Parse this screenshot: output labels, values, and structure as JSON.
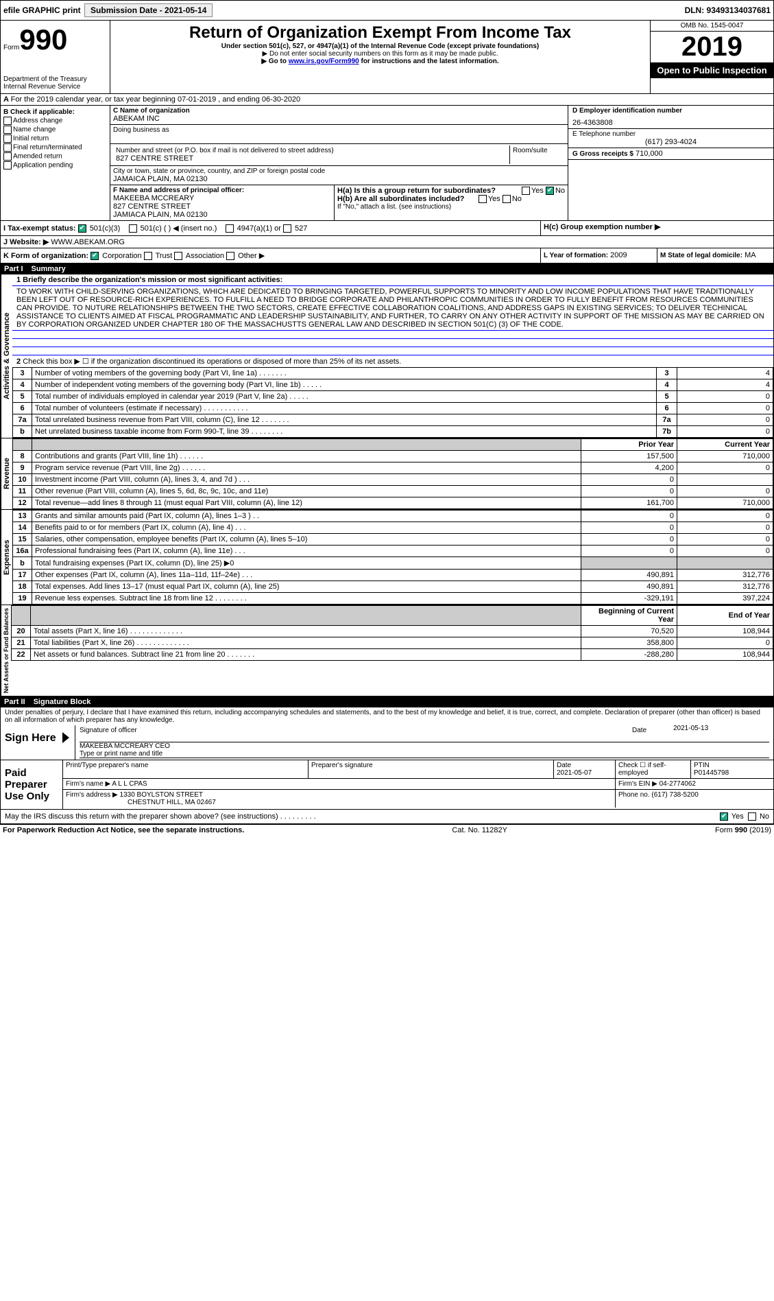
{
  "top": {
    "efile": "efile GRAPHIC print",
    "sub_label": "Submission Date - 2021-05-14",
    "dln": "DLN: 93493134037681"
  },
  "form": {
    "form_word": "Form",
    "num": "990",
    "title": "Return of Organization Exempt From Income Tax",
    "subtitle": "Under section 501(c), 527, or 4947(a)(1) of the Internal Revenue Code (except private foundations)",
    "note1": "▶ Do not enter social security numbers on this form as it may be made public.",
    "note2_pre": "▶ Go to ",
    "note2_link": "www.irs.gov/Form990",
    "note2_post": " for instructions and the latest information.",
    "dept": "Department of the Treasury",
    "irs": "Internal Revenue Service",
    "omb": "OMB No. 1545-0047",
    "year": "2019",
    "open": "Open to Public Inspection"
  },
  "A": {
    "text": "For the 2019 calendar year, or tax year beginning 07-01-2019   , and ending 06-30-2020"
  },
  "B": {
    "header": "B Check if applicable:",
    "opts": [
      "Address change",
      "Name change",
      "Initial return",
      "Final return/terminated",
      "Amended return",
      "Application pending"
    ]
  },
  "C": {
    "name_lbl": "C Name of organization",
    "name": "ABEKAM INC",
    "dba_lbl": "Doing business as",
    "dba": "",
    "addr_lbl": "Number and street (or P.O. box if mail is not delivered to street address)",
    "room_lbl": "Room/suite",
    "addr": "827 CENTRE STREET",
    "city_lbl": "City or town, state or province, country, and ZIP or foreign postal code",
    "city": "JAMAICA PLAIN, MA  02130"
  },
  "D": {
    "lbl": "D Employer identification number",
    "val": "26-4363808"
  },
  "E": {
    "lbl": "E Telephone number",
    "val": "(617) 293-4024"
  },
  "G": {
    "lbl": "G Gross receipts $",
    "val": "710,000"
  },
  "F": {
    "lbl": "F  Name and address of principal officer:",
    "name": "MAKEEBA MCCREARY",
    "addr1": "827 CENTRE STREET",
    "addr2": "JAMIACA PLAIN, MA  02130"
  },
  "H": {
    "a": "H(a)  Is this a group return for subordinates?",
    "b": "H(b)  Are all subordinates included?",
    "b_note": "If \"No,\" attach a list. (see instructions)",
    "c": "H(c)  Group exemption number ▶",
    "yes": "Yes",
    "no": "No"
  },
  "I": {
    "lbl": "I   Tax-exempt status:",
    "o1": "501(c)(3)",
    "o2": "501(c) (  ) ◀ (insert no.)",
    "o3": "4947(a)(1) or",
    "o4": "527"
  },
  "J": {
    "lbl": "J   Website: ▶",
    "val": "WWW.ABEKAM.ORG"
  },
  "K": {
    "lbl": "K Form of organization:",
    "o1": "Corporation",
    "o2": "Trust",
    "o3": "Association",
    "o4": "Other ▶"
  },
  "L": {
    "lbl": "L Year of formation:",
    "val": "2009"
  },
  "M": {
    "lbl": "M State of legal domicile:",
    "val": "MA"
  },
  "partI": {
    "num": "Part I",
    "title": "Summary"
  },
  "mission": {
    "q": "1  Briefly describe the organization's mission or most significant activities:",
    "text": "TO WORK WITH CHILD-SERVING ORGANIZATIONS, WHICH ARE DEDICATED TO BRINGING TARGETED, POWERFUL SUPPORTS TO MINORITY AND LOW INCOME POPULATIONS THAT HAVE TRADITIONALLY BEEN LEFT OUT OF RESOURCE-RICH EXPERIENCES. TO FULFILL A NEED TO BRIDGE CORPORATE AND PHILANTHROPIC COMMUNITIES IN ORDER TO FULLY BENEFIT FROM RESOURCES COMMUNITIES CAN PROVIDE. TO NUTURE RELATIONSHIPS BETWEEN THE TWO SECTORS, CREATE EFFECTIVE COLLABORATION COALITIONS, AND ADDRESS GAPS IN EXISTING SERVICES; TO DELIVER TECHINICAL ASSISTANCE TO CLIENTS AIMED AT FISCAL PROGRAMMATIC AND LEADERSHIP SUSTAINABILITY, AND FURTHER, TO CARRY ON ANY OTHER ACTIVITY IN SUPPORT OF THE MISSION AS MAY BE CARRIED ON BY CORPORATION ORGANIZED UNDER CHAPTER 180 OF THE MASSACHUSTTS GENERAL LAW AND DESCRIBED IN SECTION 501(C) (3) OF THE CODE."
  },
  "gov_lines": {
    "l2": "Check this box ▶ ☐ if the organization discontinued its operations or disposed of more than 25% of its net assets.",
    "rows": [
      {
        "n": "3",
        "lbl": "Number of voting members of the governing body (Part VI, line 1a)   .    .    .    .    .    .    .",
        "ln": "3",
        "v": "4"
      },
      {
        "n": "4",
        "lbl": "Number of independent voting members of the governing body (Part VI, line 1b)   .    .    .    .    .",
        "ln": "4",
        "v": "4"
      },
      {
        "n": "5",
        "lbl": "Total number of individuals employed in calendar year 2019 (Part V, line 2a)   .    .    .    .    .",
        "ln": "5",
        "v": "0"
      },
      {
        "n": "6",
        "lbl": "Total number of volunteers (estimate if necessary)   .    .    .    .    .    .    .    .    .    .    .",
        "ln": "6",
        "v": "0"
      },
      {
        "n": "7a",
        "lbl": "Total unrelated business revenue from Part VIII, column (C), line 12   .    .    .    .    .    .    .",
        "ln": "7a",
        "v": "0"
      },
      {
        "n": "b",
        "lbl": "Net unrelated business taxable income from Form 990-T, line 39   .    .    .    .    .    .    .    .",
        "ln": "7b",
        "v": "0"
      }
    ]
  },
  "rev_hdr": {
    "prior": "Prior Year",
    "curr": "Current Year"
  },
  "revenue": [
    {
      "n": "8",
      "lbl": "Contributions and grants (Part VIII, line 1h)   .    .    .    .    .    .",
      "p": "157,500",
      "c": "710,000"
    },
    {
      "n": "9",
      "lbl": "Program service revenue (Part VIII, line 2g)   .    .    .    .    .    .",
      "p": "4,200",
      "c": "0"
    },
    {
      "n": "10",
      "lbl": "Investment income (Part VIII, column (A), lines 3, 4, and 7d )   .    .    .",
      "p": "0",
      "c": ""
    },
    {
      "n": "11",
      "lbl": "Other revenue (Part VIII, column (A), lines 5, 6d, 8c, 9c, 10c, and 11e)",
      "p": "0",
      "c": "0"
    },
    {
      "n": "12",
      "lbl": "Total revenue—add lines 8 through 11 (must equal Part VIII, column (A), line 12)",
      "p": "161,700",
      "c": "710,000"
    }
  ],
  "expenses": [
    {
      "n": "13",
      "lbl": "Grants and similar amounts paid (Part IX, column (A), lines 1–3 )   .    .",
      "p": "0",
      "c": "0"
    },
    {
      "n": "14",
      "lbl": "Benefits paid to or for members (Part IX, column (A), line 4)   .    .    .",
      "p": "0",
      "c": "0"
    },
    {
      "n": "15",
      "lbl": "Salaries, other compensation, employee benefits (Part IX, column (A), lines 5–10)",
      "p": "0",
      "c": "0"
    },
    {
      "n": "16a",
      "lbl": "Professional fundraising fees (Part IX, column (A), line 11e)   .    .    .",
      "p": "0",
      "c": "0"
    },
    {
      "n": "b",
      "lbl": "Total fundraising expenses (Part IX, column (D), line 25) ▶0",
      "p": "GREY",
      "c": "GREY"
    },
    {
      "n": "17",
      "lbl": "Other expenses (Part IX, column (A), lines 11a–11d, 11f–24e)   .    .    .",
      "p": "490,891",
      "c": "312,776"
    },
    {
      "n": "18",
      "lbl": "Total expenses. Add lines 13–17 (must equal Part IX, column (A), line 25)",
      "p": "490,891",
      "c": "312,776"
    },
    {
      "n": "19",
      "lbl": "Revenue less expenses. Subtract line 18 from line 12   .    .    .    .    .    .    .    .",
      "p": "-329,191",
      "c": "397,224"
    }
  ],
  "net_hdr": {
    "b": "Beginning of Current Year",
    "e": "End of Year"
  },
  "net": [
    {
      "n": "20",
      "lbl": "Total assets (Part X, line 16)   .    .    .    .    .    .    .    .    .    .    .    .    .",
      "p": "70,520",
      "c": "108,944"
    },
    {
      "n": "21",
      "lbl": "Total liabilities (Part X, line 26)   .    .    .    .    .    .    .    .    .    .    .    .    .",
      "p": "358,800",
      "c": "0"
    },
    {
      "n": "22",
      "lbl": "Net assets or fund balances. Subtract line 21 from line 20   .    .    .    .    .    .    .",
      "p": "-288,280",
      "c": "108,944"
    }
  ],
  "partII": {
    "num": "Part II",
    "title": "Signature Block"
  },
  "sig": {
    "decl": "Under penalties of perjury, I declare that I have examined this return, including accompanying schedules and statements, and to the best of my knowledge and belief, it is true, correct, and complete. Declaration of preparer (other than officer) is based on all information of which preparer has any knowledge.",
    "sign_here": "Sign Here",
    "sig_officer": "Signature of officer",
    "date_lbl": "Date",
    "date": "2021-05-13",
    "name": "MAKEEBA MCCREARY CEO",
    "type_lbl": "Type or print name and title",
    "paid": "Paid Preparer Use Only",
    "prep_name_lbl": "Print/Type preparer's name",
    "prep_sig_lbl": "Preparer's signature",
    "prep_date": "2021-05-07",
    "check_self": "Check ☐ if self-employed",
    "ptin_lbl": "PTIN",
    "ptin": "P01445798",
    "firm_name_lbl": "Firm's name   ▶",
    "firm_name": "A L L CPAS",
    "firm_ein_lbl": "Firm's EIN ▶",
    "firm_ein": "04-2774062",
    "firm_addr_lbl": "Firm's address ▶",
    "firm_addr1": "1330 BOYLSTON STREET",
    "firm_addr2": "CHESTNUT HILL, MA  02467",
    "phone_lbl": "Phone no.",
    "phone": "(617) 738-5200",
    "discuss": "May the IRS discuss this return with the preparer shown above? (see instructions)   .    .    .    .    .    .    .    .    .",
    "yes": "Yes",
    "no": "No"
  },
  "foot": {
    "l": "For Paperwork Reduction Act Notice, see the separate instructions.",
    "m": "Cat. No. 11282Y",
    "r": "Form 990 (2019)"
  },
  "side_labels": {
    "gov": "Activities & Governance",
    "rev": "Revenue",
    "exp": "Expenses",
    "net": "Net Assets or Fund Balances"
  }
}
